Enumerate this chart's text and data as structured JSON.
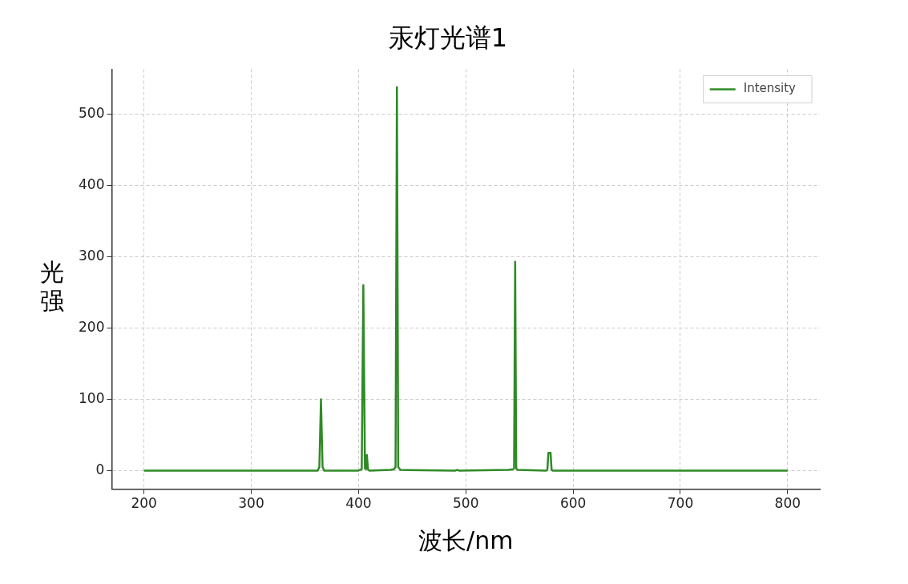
{
  "chart_data": {
    "type": "line",
    "title": "汞灯光谱1",
    "xlabel": "波长/nm",
    "ylabel": "光强",
    "series": [
      {
        "name": "Intensity",
        "color": "#2f8a26",
        "x": [
          200,
          340,
          362,
          363.5,
          365,
          366.5,
          368,
          400,
          403,
          404.5,
          406,
          407,
          407.8,
          408.8,
          410,
          430,
          433,
          434.5,
          435.8,
          437,
          439,
          490,
          492,
          494,
          540,
          544,
          545,
          546,
          547,
          548,
          575,
          576,
          577,
          579,
          580,
          581,
          800
        ],
        "values": [
          0,
          0,
          0,
          5,
          100,
          5,
          0,
          0,
          2,
          260,
          3,
          2,
          22,
          2,
          0,
          1,
          2,
          5,
          538,
          5,
          1,
          0,
          1,
          0,
          1,
          2,
          3,
          293,
          3,
          1,
          0,
          1,
          25,
          25,
          1,
          0,
          0
        ]
      }
    ],
    "xlim": [
      170,
      830
    ],
    "xticks": [
      200,
      300,
      400,
      500,
      600,
      700,
      800
    ],
    "ylim": [
      -26,
      563
    ],
    "yticks": [
      0,
      100,
      200,
      300,
      400,
      500
    ],
    "grid": true,
    "legend": "top right",
    "marker": "none",
    "line_style": "solid"
  }
}
